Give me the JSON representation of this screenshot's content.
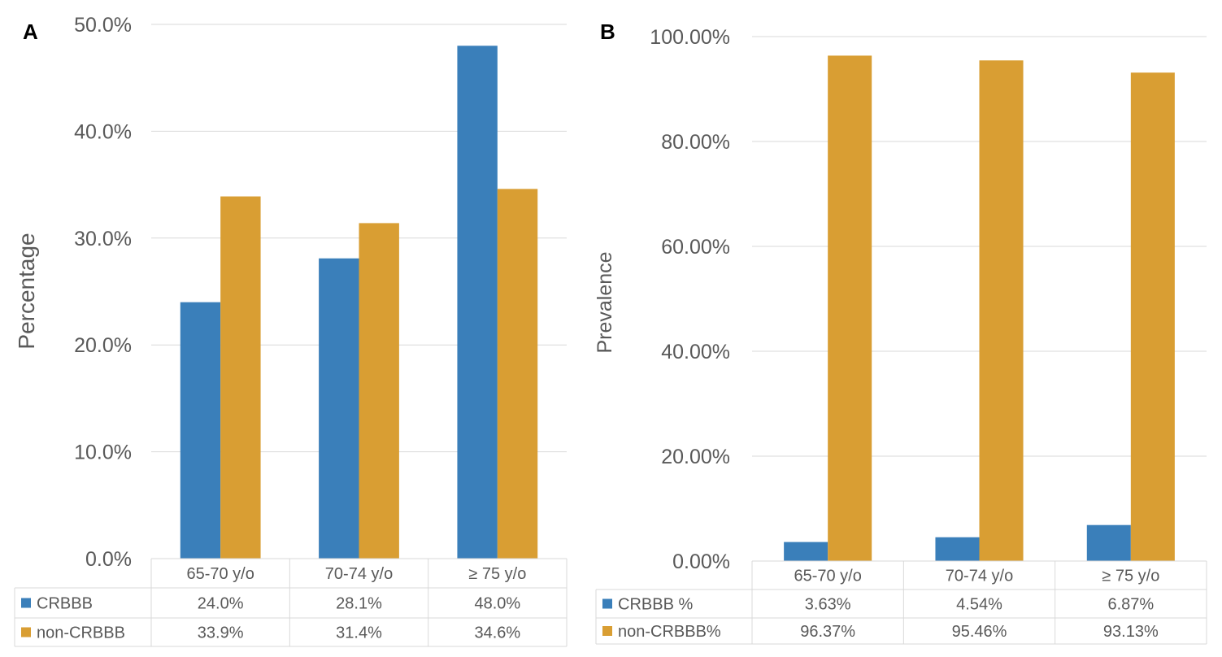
{
  "colors": {
    "series1": "#3a7fba",
    "series2": "#d99e33",
    "grid": "#d9d9d9",
    "text": "#595959",
    "panel_letter": "#000000"
  },
  "chart_data": [
    {
      "type": "bar",
      "panel": "A",
      "ylabel": "Percentage",
      "ylim": [
        0,
        50
      ],
      "yticks": [
        "0.0%",
        "10.0%",
        "20.0%",
        "30.0%",
        "40.0%",
        "50.0%"
      ],
      "categories": [
        "65-70 y/o",
        "70-74 y/o",
        "≥ 75 y/o"
      ],
      "series": [
        {
          "name": "CRBBB",
          "values": [
            24.0,
            28.1,
            48.0
          ],
          "labels": [
            "24.0%",
            "28.1%",
            "48.0%"
          ]
        },
        {
          "name": "non-CRBBB",
          "values": [
            33.9,
            31.4,
            34.6
          ],
          "labels": [
            "33.9%",
            "31.4%",
            "34.6%"
          ]
        }
      ],
      "grid": true,
      "data_table": true
    },
    {
      "type": "bar",
      "panel": "B",
      "ylabel": "Prevalence",
      "ylim": [
        0,
        100
      ],
      "yticks": [
        "0.00%",
        "20.00%",
        "40.00%",
        "60.00%",
        "80.00%",
        "100.00%"
      ],
      "categories": [
        "65-70 y/o",
        "70-74 y/o",
        "≥ 75 y/o"
      ],
      "series": [
        {
          "name": "CRBBB %",
          "values": [
            3.63,
            4.54,
            6.87
          ],
          "labels": [
            "3.63%",
            "4.54%",
            "6.87%"
          ]
        },
        {
          "name": "non-CRBBB%",
          "values": [
            96.37,
            95.46,
            93.13
          ],
          "labels": [
            "96.37%",
            "95.46%",
            "93.13%"
          ]
        }
      ],
      "grid": true,
      "data_table": true
    }
  ]
}
